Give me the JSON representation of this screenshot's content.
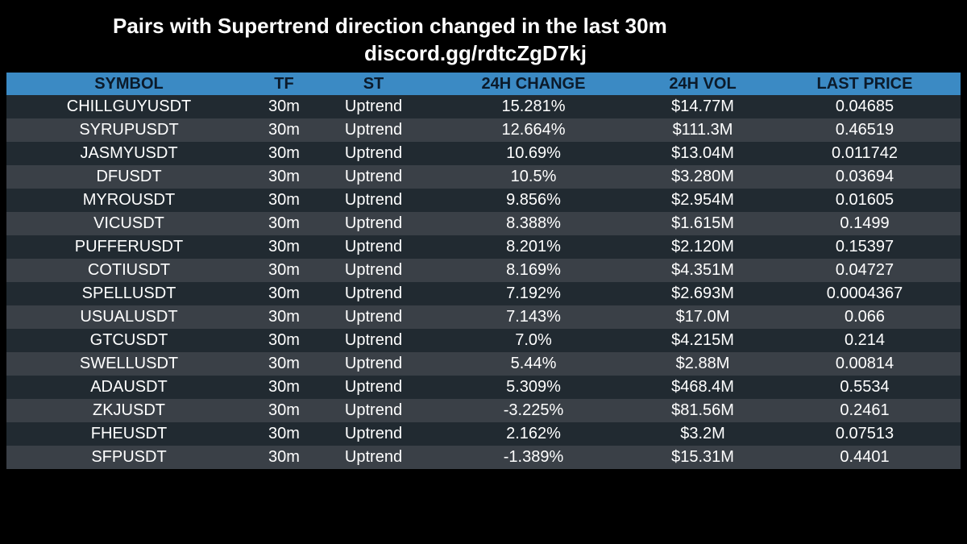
{
  "header": {
    "title": "Pairs with Supertrend direction changed in the last 30m",
    "subtitle": "discord.gg/rdtcZgD7kj"
  },
  "table": {
    "columns": [
      "SYMBOL",
      "TF",
      "ST",
      "24H CHANGE",
      "24H VOL",
      "LAST PRICE"
    ],
    "rows": [
      [
        "CHILLGUYUSDT",
        "30m",
        "Uptrend",
        "15.281%",
        "$14.77M",
        "0.04685"
      ],
      [
        "SYRUPUSDT",
        "30m",
        "Uptrend",
        "12.664%",
        "$111.3M",
        "0.46519"
      ],
      [
        "JASMYUSDT",
        "30m",
        "Uptrend",
        "10.69%",
        "$13.04M",
        "0.011742"
      ],
      [
        "DFUSDT",
        "30m",
        "Uptrend",
        "10.5%",
        "$3.280M",
        "0.03694"
      ],
      [
        "MYROUSDT",
        "30m",
        "Uptrend",
        "9.856%",
        "$2.954M",
        "0.01605"
      ],
      [
        "VICUSDT",
        "30m",
        "Uptrend",
        "8.388%",
        "$1.615M",
        "0.1499"
      ],
      [
        "PUFFERUSDT",
        "30m",
        "Uptrend",
        "8.201%",
        "$2.120M",
        "0.15397"
      ],
      [
        "COTIUSDT",
        "30m",
        "Uptrend",
        "8.169%",
        "$4.351M",
        "0.04727"
      ],
      [
        "SPELLUSDT",
        "30m",
        "Uptrend",
        "7.192%",
        "$2.693M",
        "0.0004367"
      ],
      [
        "USUALUSDT",
        "30m",
        "Uptrend",
        "7.143%",
        "$17.0M",
        "0.066"
      ],
      [
        "GTCUSDT",
        "30m",
        "Uptrend",
        "7.0%",
        "$4.215M",
        "0.214"
      ],
      [
        "SWELLUSDT",
        "30m",
        "Uptrend",
        "5.44%",
        "$2.88M",
        "0.00814"
      ],
      [
        "ADAUSDT",
        "30m",
        "Uptrend",
        "5.309%",
        "$468.4M",
        "0.5534"
      ],
      [
        "ZKJUSDT",
        "30m",
        "Uptrend",
        "-3.225%",
        "$81.56M",
        "0.2461"
      ],
      [
        "FHEUSDT",
        "30m",
        "Uptrend",
        "2.162%",
        "$3.2M",
        "0.07513"
      ],
      [
        "SFPUSDT",
        "30m",
        "Uptrend",
        "-1.389%",
        "$15.31M",
        "0.4401"
      ]
    ]
  },
  "colors": {
    "background": "#000000",
    "header_row": "#3b8ac4",
    "row_dark": "#212a31",
    "row_light": "#3a4047",
    "text": "#ffffff"
  }
}
